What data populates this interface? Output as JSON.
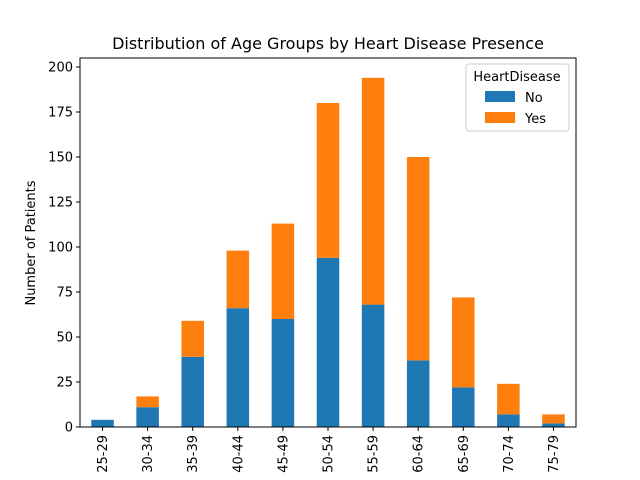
{
  "chart_data": {
    "type": "bar",
    "stacked": true,
    "title": "Distribution of Age Groups by Heart Disease Presence",
    "xlabel": "",
    "ylabel": "Number of Patients",
    "categories": [
      "25-29",
      "30-34",
      "35-39",
      "40-44",
      "45-49",
      "50-54",
      "55-59",
      "60-64",
      "65-69",
      "70-74",
      "75-79"
    ],
    "series": [
      {
        "name": "No",
        "color": "#1f77b4",
        "values": [
          4,
          11,
          39,
          66,
          60,
          94,
          68,
          37,
          22,
          7,
          2
        ]
      },
      {
        "name": "Yes",
        "color": "#ff7f0e",
        "values": [
          0,
          6,
          20,
          32,
          53,
          86,
          126,
          113,
          50,
          17,
          5
        ]
      }
    ],
    "ylim": [
      0,
      205
    ],
    "yticks": [
      0,
      25,
      50,
      75,
      100,
      125,
      150,
      175,
      200
    ],
    "legend": {
      "title": "HeartDisease",
      "placement": "top-right"
    },
    "grid": false
  }
}
